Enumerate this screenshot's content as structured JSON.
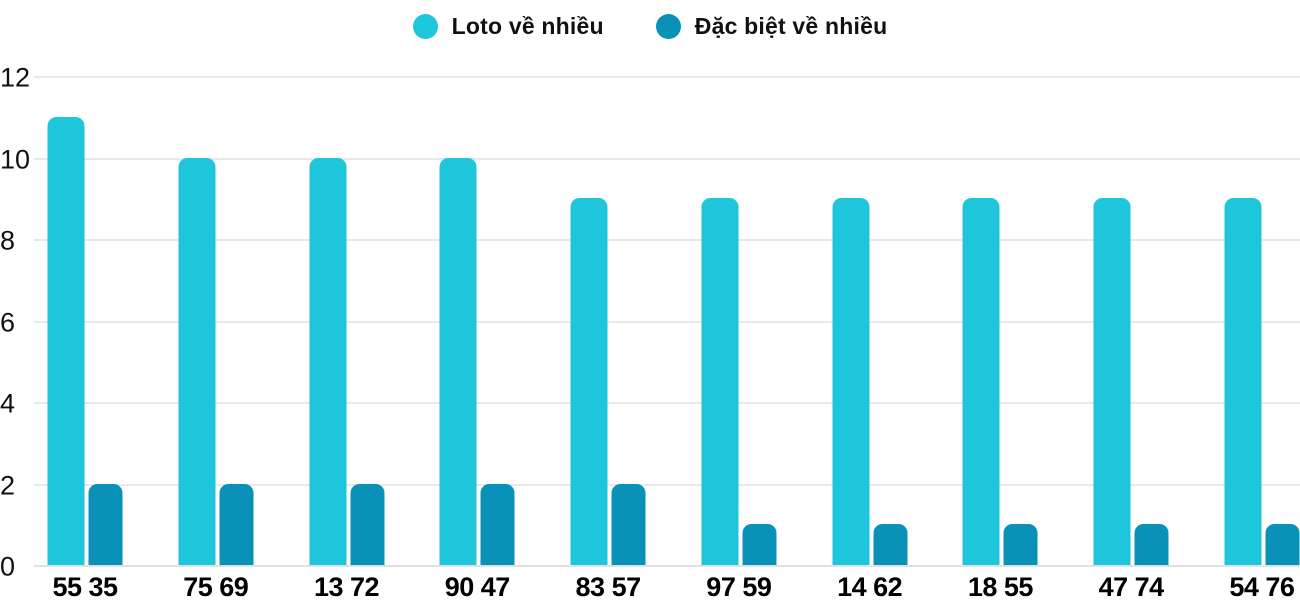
{
  "chart_data": {
    "type": "bar",
    "title": "",
    "categories": [
      "55 35",
      "75 69",
      "13 72",
      "90 47",
      "83 57",
      "97 59",
      "14 62",
      "18 55",
      "47 74",
      "54 76"
    ],
    "series": [
      {
        "name": "Loto về nhiều",
        "color": "#1EC6DB",
        "values": [
          11,
          10,
          10,
          10,
          9,
          9,
          9,
          9,
          9,
          9
        ]
      },
      {
        "name": "Đặc biệt về nhiều",
        "color": "#0991B7",
        "values": [
          2,
          2,
          2,
          2,
          2,
          1,
          1,
          1,
          1,
          1
        ]
      }
    ],
    "ylim": [
      0,
      12
    ],
    "yticks": [
      0,
      2,
      4,
      6,
      8,
      10,
      12
    ],
    "grid": true,
    "legend_position": "top-center",
    "background": "#ffffff",
    "gridline_color": "#e8e8e8",
    "axis_text_color": "#111111"
  }
}
